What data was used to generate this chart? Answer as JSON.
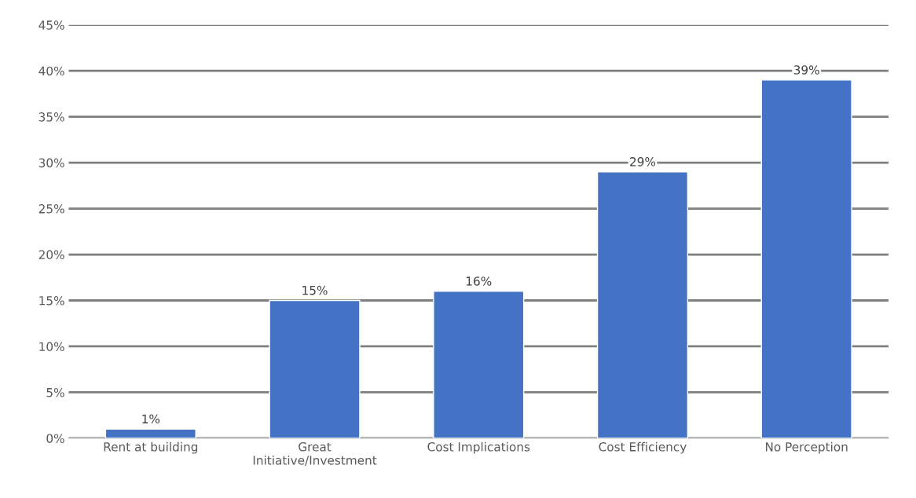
{
  "chart_data": {
    "type": "bar",
    "categories": [
      "Rent at building",
      "Great\nInitiative/Investment",
      "Cost Implications",
      "Cost Efficiency",
      "No Perception"
    ],
    "values": [
      1,
      15,
      16,
      29,
      39
    ],
    "value_labels": [
      "1%",
      "15%",
      "16%",
      "29%",
      "39%"
    ],
    "color": "#4472c4",
    "ylim": [
      0,
      45
    ],
    "yticks": [
      {
        "value": 0,
        "label": "0%"
      },
      {
        "value": 5,
        "label": "5%"
      },
      {
        "value": 10,
        "label": "10%"
      },
      {
        "value": 15,
        "label": "15%"
      },
      {
        "value": 20,
        "label": "20%"
      },
      {
        "value": 25,
        "label": "25%"
      },
      {
        "value": 30,
        "label": "30%"
      },
      {
        "value": 35,
        "label": "35%"
      },
      {
        "value": 40,
        "label": "40%"
      },
      {
        "value": 45,
        "label": "45%"
      }
    ],
    "grid": "y",
    "legend": false
  }
}
